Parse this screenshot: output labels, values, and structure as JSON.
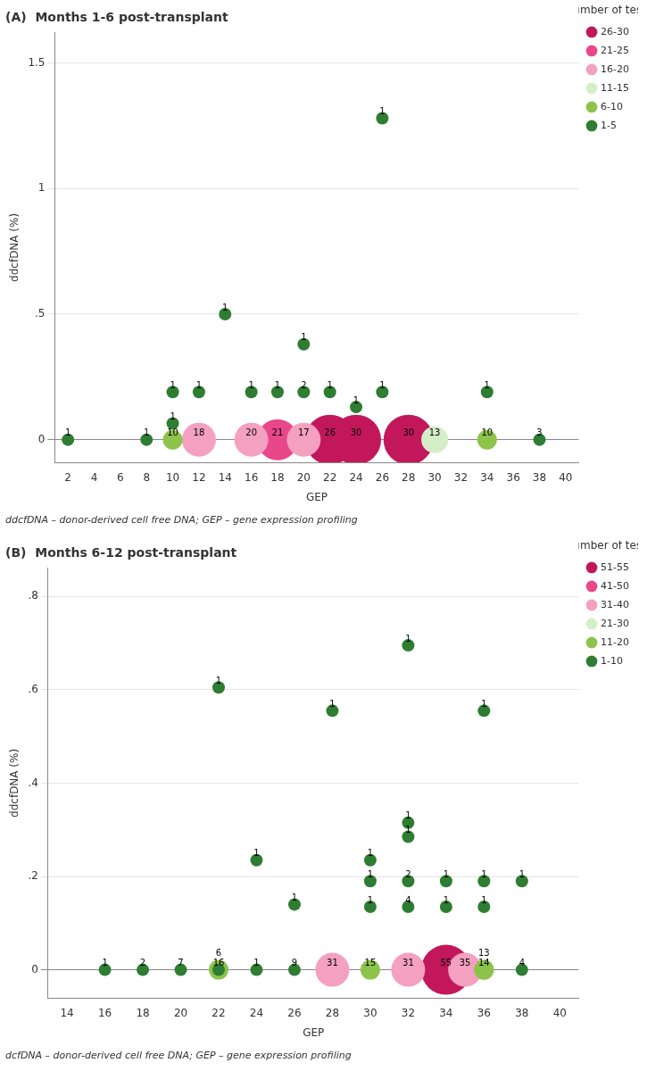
{
  "chart_data": [
    {
      "type": "bubble",
      "title": "(A)  Months 1-6 post-transplant",
      "xlabel": "GEP",
      "ylabel": "ddcfDNA (%)",
      "footnote": "ddcfDNA – donor-derived cell free DNA; GEP – gene expression profiling",
      "xlim": [
        1,
        41
      ],
      "ylim": [
        -0.09,
        1.62
      ],
      "xticks": [
        2,
        4,
        6,
        8,
        10,
        12,
        14,
        16,
        18,
        20,
        22,
        24,
        26,
        28,
        30,
        32,
        34,
        36,
        38,
        40
      ],
      "yticks": [
        0,
        {
          "value": 0.5,
          "label": ".5"
        },
        1,
        1.5
      ],
      "grid": "y",
      "legend": "upper right",
      "legend_title": "Number of tests",
      "data_labels": true,
      "series": [
        {
          "name": "26-30",
          "color": "#C2185B",
          "x": [
            22,
            24,
            28
          ],
          "y": [
            0.0,
            0.0,
            0.0
          ],
          "tests": [
            26,
            30,
            30
          ]
        },
        {
          "name": "21-25",
          "color": "#E8478A",
          "x": [
            18
          ],
          "y": [
            0.0
          ],
          "tests": [
            21
          ]
        },
        {
          "name": "16-20",
          "color": "#F4A0C0",
          "x": [
            12,
            16,
            20
          ],
          "y": [
            0.0,
            0.0,
            0.0
          ],
          "tests": [
            18,
            20,
            17
          ]
        },
        {
          "name": "11-15",
          "color": "#D4EEC9",
          "x": [
            30
          ],
          "y": [
            0.0
          ],
          "tests": [
            13
          ]
        },
        {
          "name": "6-10",
          "color": "#8DC34B",
          "x": [
            10,
            34
          ],
          "y": [
            0.0,
            0.0
          ],
          "tests": [
            10,
            10
          ]
        },
        {
          "name": "1-5",
          "color": "#2E7D32",
          "x": [
            2,
            8,
            10,
            10,
            12,
            14,
            16,
            18,
            20,
            20,
            22,
            24,
            26,
            26,
            34,
            38
          ],
          "y": [
            0.0,
            0.0,
            0.065,
            0.19,
            0.19,
            0.5,
            0.19,
            0.19,
            0.19,
            0.38,
            0.19,
            0.13,
            1.28,
            0.19,
            0.19,
            0.0
          ],
          "tests": [
            1,
            1,
            1,
            1,
            1,
            1,
            1,
            1,
            2,
            1,
            1,
            1,
            1,
            1,
            1,
            3
          ]
        }
      ]
    },
    {
      "type": "bubble",
      "title": "(B)  Months 6-12 post-transplant",
      "xlabel": "GEP",
      "ylabel": "ddcfDNA (%)",
      "footnote": "dcfDNA – donor-derived cell free DNA; GEP – gene expression profiling",
      "xlim": [
        13,
        41
      ],
      "ylim": [
        -0.06,
        0.86
      ],
      "xticks": [
        14,
        16,
        18,
        20,
        22,
        24,
        26,
        28,
        30,
        32,
        34,
        36,
        38,
        40
      ],
      "yticks": [
        0,
        {
          "value": 0.2,
          "label": ".2"
        },
        {
          "value": 0.4,
          "label": ".4"
        },
        {
          "value": 0.6,
          "label": ".6"
        },
        {
          "value": 0.8,
          "label": ".8"
        }
      ],
      "grid": "y",
      "legend": "upper right",
      "legend_title": "Number of tests",
      "data_labels": true,
      "series": [
        {
          "name": "51-55",
          "color": "#C2185B",
          "x": [
            34
          ],
          "y": [
            0.0
          ],
          "tests": [
            55
          ]
        },
        {
          "name": "41-50",
          "color": "#E8478A",
          "x": [],
          "y": [],
          "tests": []
        },
        {
          "name": "31-40",
          "color": "#F4A0C0",
          "x": [
            28,
            32,
            35
          ],
          "y": [
            0.0,
            0.0,
            0.0
          ],
          "tests": [
            31,
            31,
            35
          ]
        },
        {
          "name": "21-30",
          "color": "#D4EEC9",
          "x": [],
          "y": [],
          "tests": []
        },
        {
          "name": "11-20",
          "color": "#8DC34B",
          "x": [
            22,
            30,
            36,
            36
          ],
          "y": [
            0.0,
            0.0,
            0.0,
            0.0
          ],
          "tests": [
            16,
            15,
            14,
            13
          ]
        },
        {
          "name": "1-10",
          "color": "#2E7D32",
          "x": [
            16,
            18,
            20,
            22,
            22,
            24,
            24,
            26,
            26,
            28,
            30,
            30,
            30,
            32,
            32,
            32,
            32,
            32,
            34,
            34,
            36,
            36,
            36,
            38,
            38
          ],
          "y": [
            0.0,
            0.0,
            0.0,
            0.0,
            0.605,
            0.0,
            0.235,
            0.0,
            0.14,
            0.555,
            0.135,
            0.19,
            0.235,
            0.135,
            0.19,
            0.285,
            0.315,
            0.695,
            0.135,
            0.19,
            0.135,
            0.19,
            0.555,
            0.19,
            0.0
          ],
          "tests": [
            1,
            2,
            7,
            6,
            1,
            1,
            1,
            9,
            1,
            1,
            1,
            1,
            1,
            4,
            2,
            1,
            1,
            1,
            1,
            1,
            1,
            1,
            1,
            1,
            4
          ]
        }
      ]
    }
  ]
}
